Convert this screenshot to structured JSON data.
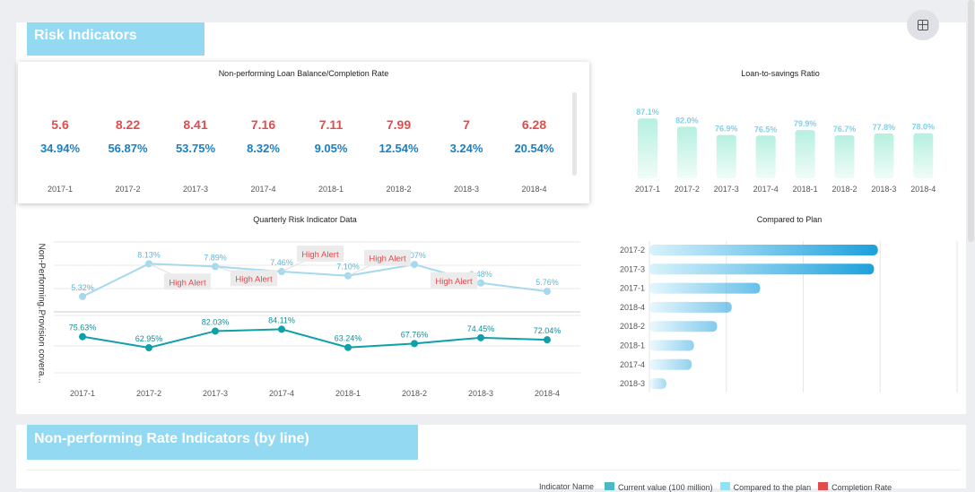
{
  "section1": {
    "title": "Risk Indicators",
    "settings_icon": "layout-settings-icon"
  },
  "section2": {
    "title": "Non-performing Rate Indicators (by line)"
  },
  "legend": {
    "label": "Indicator Name",
    "items": [
      {
        "name": "Current value (100 million)",
        "color": "#4fb8c8"
      },
      {
        "name": "Compared to the plan",
        "color": "#8fe3f7"
      },
      {
        "name": "Completion Rate",
        "color": "#e14c4c"
      }
    ]
  },
  "colors": {
    "header": "#92d9f1",
    "red": "#e14c4c",
    "blue": "#1a80c4",
    "line1": "#a6d8ee",
    "line2": "#0fa0a8",
    "bar": "#1a9fdc"
  },
  "chart_data": [
    {
      "type": "table",
      "title": "Non-performing Loan Balance/Completion Rate",
      "categories": [
        "2017-1",
        "2017-2",
        "2017-3",
        "2017-4",
        "2018-1",
        "2018-2",
        "2018-3",
        "2018-4"
      ],
      "balance": [
        "5.6",
        "8.22",
        "8.41",
        "7.16",
        "7.11",
        "7.99",
        "7",
        "6.28"
      ],
      "completion_rate": [
        "34.94%",
        "56.87%",
        "53.75%",
        "8.32%",
        "9.05%",
        "12.54%",
        "3.24%",
        "20.54%"
      ]
    },
    {
      "type": "bar",
      "title": "Loan-to-savings Ratio",
      "categories": [
        "2017-1",
        "2017-2",
        "2017-3",
        "2017-4",
        "2018-1",
        "2018-2",
        "2018-3",
        "2018-4"
      ],
      "values": [
        87.1,
        82.0,
        76.9,
        76.5,
        79.9,
        76.7,
        77.8,
        78.0
      ],
      "labels": [
        "87.1%",
        "82.0%",
        "76.9%",
        "76.5%",
        "79.9%",
        "76.7%",
        "77.8%",
        "78.0%"
      ],
      "ylim": [
        50,
        90
      ]
    },
    {
      "type": "line",
      "title": "Quarterly Risk Indicator Data",
      "categories": [
        "2017-1",
        "2017-2",
        "2017-3",
        "2017-4",
        "2018-1",
        "2018-2",
        "2018-3",
        "2018-4"
      ],
      "series": [
        {
          "name": "Non-Performing...",
          "values": [
            5.32,
            8.13,
            7.89,
            7.46,
            7.1,
            8.07,
            6.48,
            5.76
          ],
          "labels": [
            "5.32%",
            "8.13%",
            "7.89%",
            "7.46%",
            "7.10%",
            "8.07%",
            "6.48%",
            "5.76%"
          ],
          "ylim": [
            4,
            10
          ]
        },
        {
          "name": "Provision covera...",
          "values": [
            75.63,
            62.95,
            82.03,
            84.11,
            63.24,
            67.76,
            74.45,
            72.04
          ],
          "labels": [
            "75.63%",
            "62.95%",
            "82.03%",
            "84.11%",
            "63.24%",
            "67.76%",
            "74.45%",
            "72.04%"
          ],
          "ylim": [
            30,
            100
          ]
        }
      ],
      "annotations": [
        {
          "category": "2017-2",
          "text": "High Alert"
        },
        {
          "category": "2017-3",
          "text": "High Alert"
        },
        {
          "category": "2017-4",
          "text": "High Alert"
        },
        {
          "category": "2018-1",
          "text": "High Alert"
        },
        {
          "category": "2018-3",
          "text": "High Alert"
        }
      ]
    },
    {
      "type": "bar",
      "orientation": "horizontal",
      "title": "Compared to Plan",
      "categories": [
        "2017-2",
        "2017-3",
        "2017-1",
        "2018-4",
        "2018-2",
        "2018-1",
        "2017-4",
        "2018-3"
      ],
      "values": [
        2.97,
        2.92,
        1.44,
        1.07,
        0.88,
        0.58,
        0.55,
        0.22
      ],
      "xlim": [
        0,
        4
      ]
    }
  ]
}
